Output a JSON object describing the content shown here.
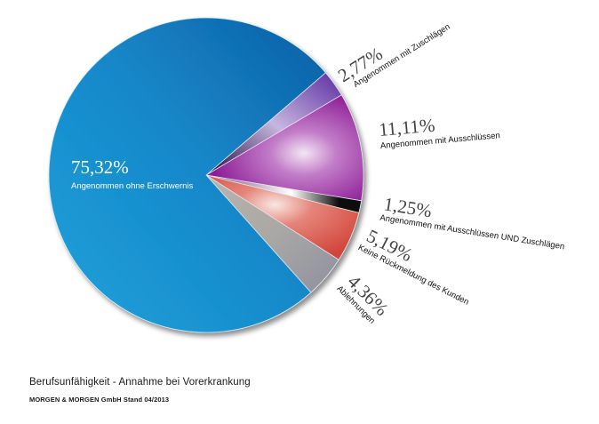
{
  "chart_data": {
    "type": "pie",
    "title": "Berufsunfähigkeit - Annahme bei Vorerkrankung",
    "source": "MORGEN & MORGEN GmbH  Stand 04/2013",
    "start_angle_deg": -40.6,
    "direction": "clockwise",
    "slices": [
      {
        "label": "Angenommen mit Zuschlägen",
        "value": 2.77,
        "display": "2,77%",
        "color": "#4b2a8a"
      },
      {
        "label": "Angenommen mit Ausschlüssen",
        "value": 11.11,
        "display": "11,11%",
        "color": "#a03aa8"
      },
      {
        "label": "Angenommen mit Ausschlüssen UND Zuschlägen",
        "value": 1.25,
        "display": "1,25%",
        "color": "#1a1a1a"
      },
      {
        "label": "Keine Rückmeldung des Kunden",
        "value": 5.19,
        "display": "5,19%",
        "color": "#d9574a"
      },
      {
        "label": "Ablehnungen",
        "value": 4.36,
        "display": "4,36%",
        "color": "#9a9aa8"
      },
      {
        "label": "Angenommen ohne Erschwernis",
        "value": 75.32,
        "display": "75,32%",
        "color": "#1a8ccc"
      }
    ]
  },
  "labels": {
    "zuschlaege": {
      "pct": "2,77%",
      "text": "Angenommen mit Zuschlägen"
    },
    "ausschluesse": {
      "pct": "11,11%",
      "text": "Angenommen mit Ausschlüssen"
    },
    "beides": {
      "pct": "1,25%",
      "text": "Angenommen mit Ausschlüssen UND Zuschlägen"
    },
    "keine": {
      "pct": "5,19%",
      "text": "Keine Rückmeldung des Kunden"
    },
    "ablehnungen": {
      "pct": "4,36%",
      "text": "Ablehnungen"
    },
    "ohne": {
      "pct": "75,32%",
      "text": "Angenommen ohne Erschwernis"
    }
  },
  "footer": {
    "title": "Berufsunfähigkeit - Annahme bei Vorerkrankung",
    "source": "MORGEN & MORGEN GmbH  Stand 04/2013"
  }
}
